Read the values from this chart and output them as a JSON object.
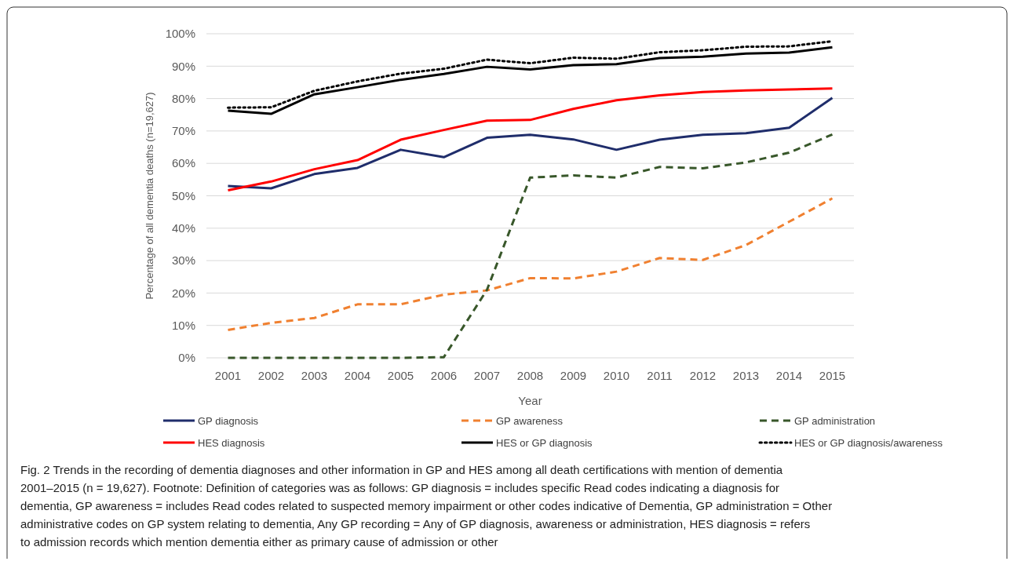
{
  "chart_data": {
    "type": "line",
    "xlabel": "Year",
    "ylabel": "Percentage of all dementia deaths (n=19,627)",
    "categories": [
      "2001",
      "2002",
      "2003",
      "2004",
      "2005",
      "2006",
      "2007",
      "2008",
      "2009",
      "2010",
      "2011",
      "2012",
      "2013",
      "2014",
      "2015"
    ],
    "series": [
      {
        "name": "GP diagnosis",
        "color": "#1f2d6b",
        "line_style": "solid",
        "values": [
          53,
          52.3,
          56.7,
          58.6,
          64.2,
          61.9,
          67.9,
          68.8,
          67.4,
          64.2,
          67.3,
          68.8,
          69.3,
          71,
          80.2
        ]
      },
      {
        "name": "GP awareness",
        "color": "#f08030",
        "line_style": "dashed",
        "values": [
          8.6,
          10.8,
          12.3,
          16.5,
          16.5,
          19.5,
          20.8,
          24.6,
          24.5,
          26.6,
          30.8,
          30.2,
          34.8,
          42,
          49.2
        ]
      },
      {
        "name": "GP administration",
        "color": "#38572a",
        "line_style": "dashed",
        "values": [
          0,
          0,
          0,
          0,
          0,
          0.2,
          21,
          55.6,
          56.3,
          55.6,
          58.9,
          58.5,
          60.3,
          63.3,
          68.9
        ]
      },
      {
        "name": "HES diagnosis",
        "color": "#ff0000",
        "line_style": "solid",
        "values": [
          51.7,
          54.4,
          58.2,
          61,
          67.3,
          70.3,
          73.2,
          73.4,
          76.8,
          79.5,
          81,
          82,
          82.5,
          82.8,
          83.1
        ]
      },
      {
        "name": "HES or GP diagnosis",
        "color": "#000000",
        "line_style": "solid",
        "values": [
          76.3,
          75.3,
          81.3,
          83.5,
          85.8,
          87.6,
          89.8,
          89,
          90.3,
          90.6,
          92.5,
          92.9,
          93.9,
          94.2,
          95.8
        ]
      },
      {
        "name": "HES or GP diagnosis/awareness",
        "color": "#000000",
        "line_style": "dotted",
        "values": [
          77.2,
          77.3,
          82.4,
          85.3,
          87.7,
          89.2,
          92,
          90.9,
          92.6,
          92.3,
          94.3,
          94.9,
          96,
          96.1,
          97.7
        ]
      }
    ],
    "ylim": [
      0,
      100
    ],
    "yticks": [
      {
        "value": 0,
        "label": "0%"
      },
      {
        "value": 10,
        "label": "10%"
      },
      {
        "value": 20,
        "label": "20%"
      },
      {
        "value": 30,
        "label": "30%"
      },
      {
        "value": 40,
        "label": "40%"
      },
      {
        "value": 50,
        "label": "50%"
      },
      {
        "value": 60,
        "label": "60%"
      },
      {
        "value": 70,
        "label": "70%"
      },
      {
        "value": 80,
        "label": "80%"
      },
      {
        "value": 90,
        "label": "90%"
      },
      {
        "value": 100,
        "label": "100%"
      }
    ],
    "grid": "y",
    "legend": "bottom",
    "marker": "none",
    "annotations": [
      "Fig. 2 Trends in the recording of dementia diagnoses and other information in GP and HES among all death certifications with mention of dementia 2001–2015 (n = 19,627). Footnote: Definition of categories was as follows: GP diagnosis = includes specific Read codes indicating a diagnosis for dementia, GP awareness = includes Read codes related to suspected memory impairment or other codes indicative of Dementia, GP administration = Other administrative codes on GP system relating to dementia, Any GP recording = Any of GP diagnosis, awareness or administration, HES diagnosis = refers to admission records which mention dementia either as primary cause of admission or other"
    ]
  }
}
